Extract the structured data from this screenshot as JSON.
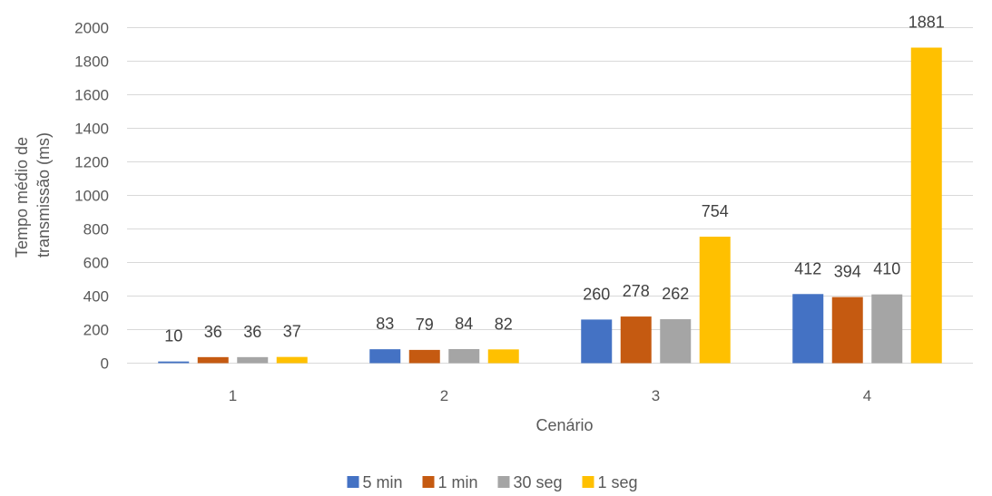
{
  "chart_data": {
    "type": "bar",
    "title": "",
    "xlabel": "Cenário",
    "ylabel_lines": [
      "Tempo médio de",
      "transmissão (ms)"
    ],
    "categories": [
      "1",
      "2",
      "3",
      "4"
    ],
    "ylim": [
      0,
      2000
    ],
    "yticks": [
      0,
      200,
      400,
      600,
      800,
      1000,
      1200,
      1400,
      1600,
      1800,
      2000
    ],
    "grid": true,
    "legend_position": "bottom",
    "series": [
      {
        "name": "5 min",
        "color": "#4472C4",
        "values": [
          10,
          83,
          260,
          412
        ]
      },
      {
        "name": "1 min",
        "color": "#C55A11",
        "values": [
          36,
          79,
          278,
          394
        ]
      },
      {
        "name": "30 seg",
        "color": "#A5A5A5",
        "values": [
          36,
          84,
          262,
          410
        ]
      },
      {
        "name": "1 seg",
        "color": "#FFC000",
        "values": [
          37,
          82,
          754,
          1881
        ]
      }
    ]
  }
}
